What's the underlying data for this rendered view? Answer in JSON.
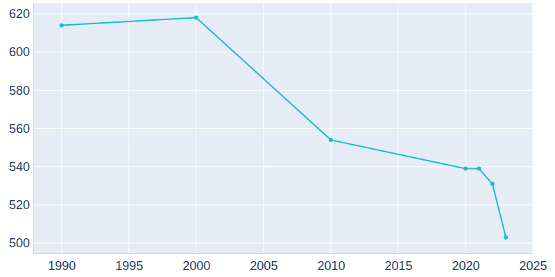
{
  "chart_data": {
    "type": "line",
    "x": [
      1990,
      2000,
      2010,
      2020,
      2021,
      2022,
      2023
    ],
    "values": [
      614,
      618,
      554,
      539,
      539,
      531,
      503
    ],
    "color": "#17becf",
    "marker": "circle",
    "xlim": [
      1987.9,
      2025
    ],
    "xticks": [
      1990,
      1995,
      2000,
      2005,
      2010,
      2015,
      2020,
      2025
    ],
    "ylim": [
      494.6,
      625.8
    ],
    "yticks": [
      500,
      520,
      540,
      560,
      580,
      600,
      620
    ],
    "grid": true
  }
}
